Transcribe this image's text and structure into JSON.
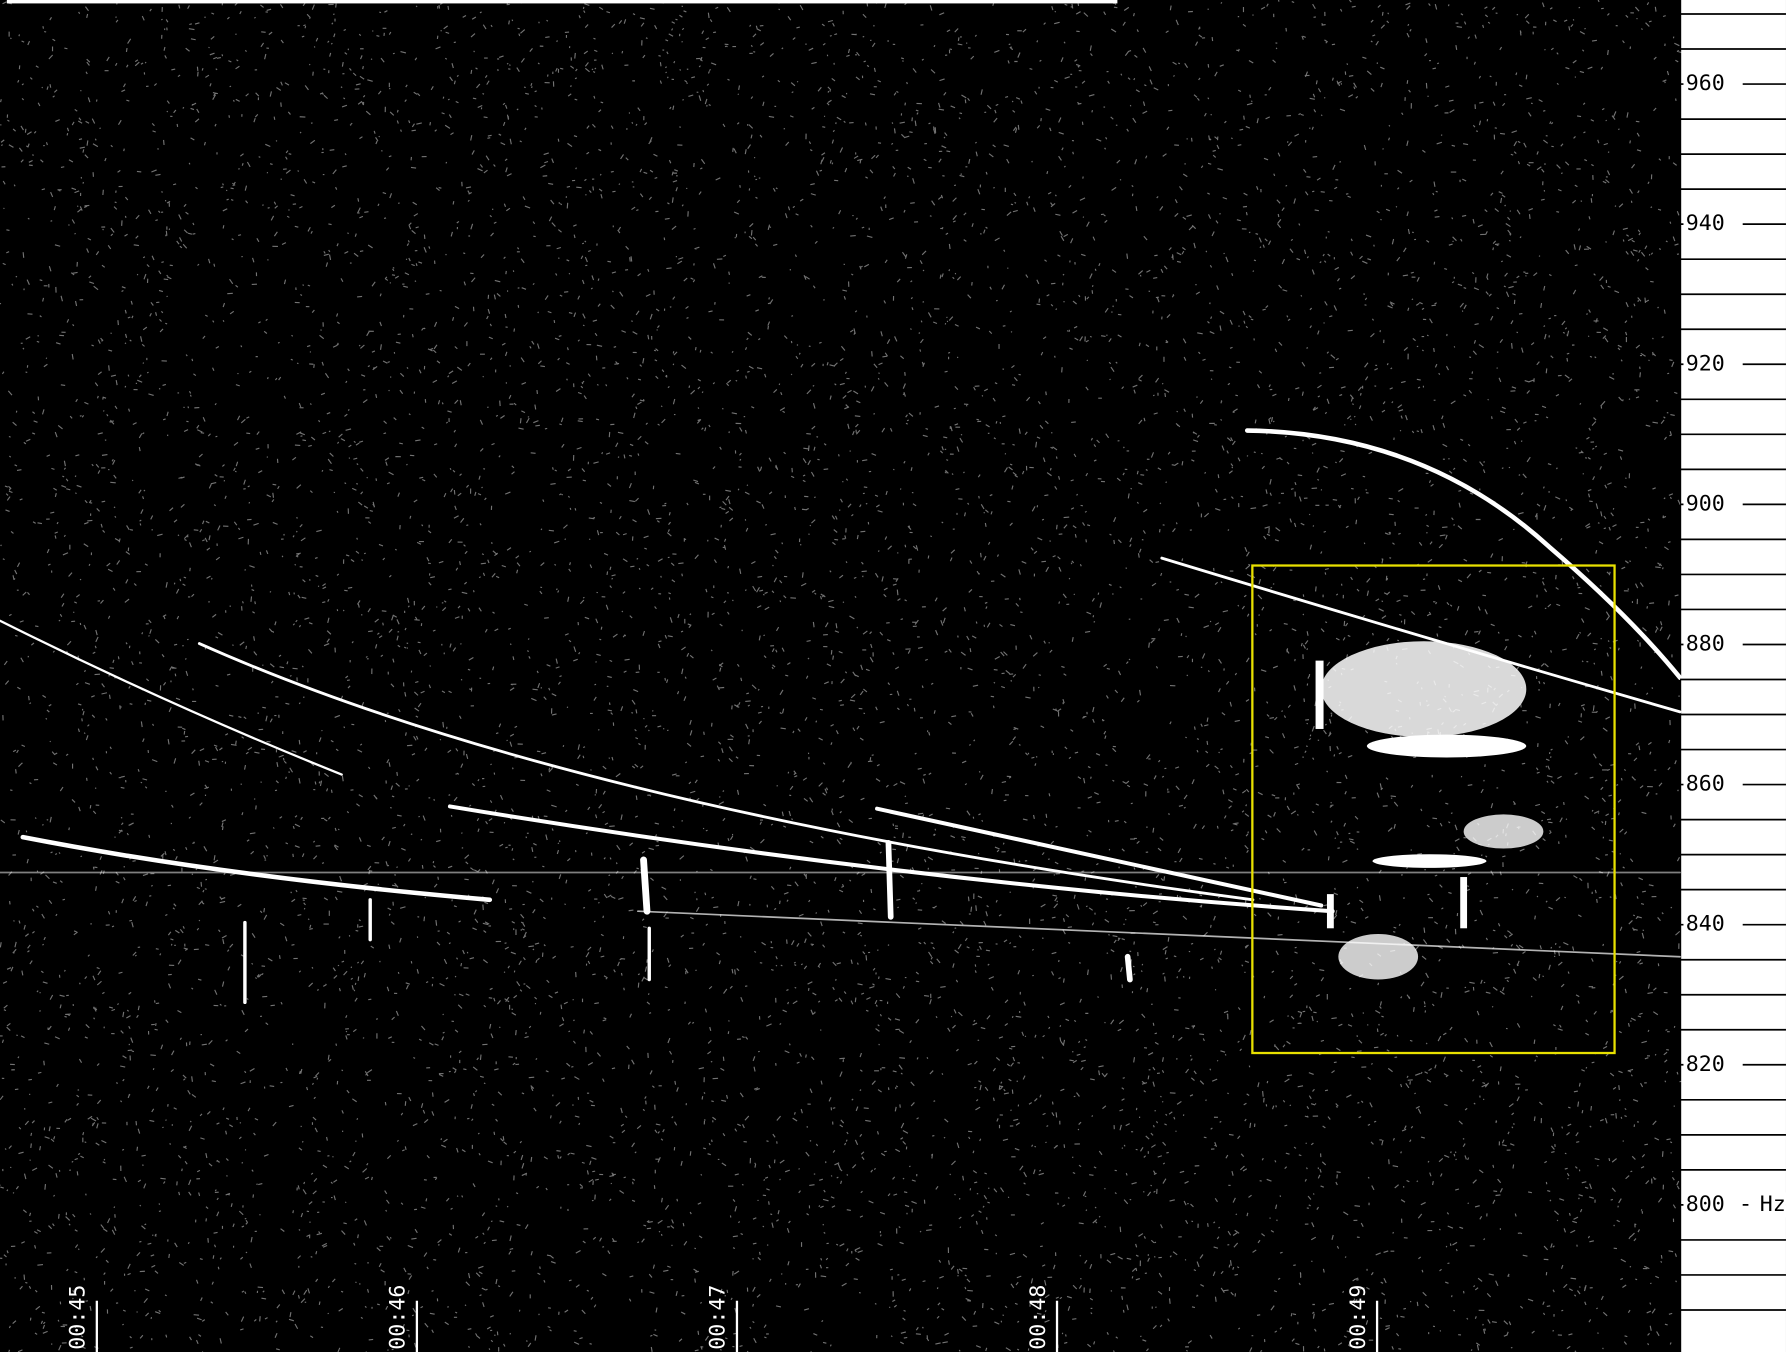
{
  "chart_data": {
    "type": "spectrogram",
    "ylim": [
      779,
      972
    ],
    "yticks": [
      800,
      820,
      840,
      860,
      880,
      900,
      920,
      940,
      960
    ],
    "minor_yticks": [
      785,
      790,
      795,
      805,
      810,
      815,
      825,
      830,
      835,
      845,
      850,
      855,
      865,
      870,
      875,
      885,
      890,
      895,
      905,
      910,
      915,
      925,
      930,
      935,
      945,
      950,
      955,
      965,
      970
    ],
    "y_unit": "Hz",
    "x_labels": [
      "00:45",
      "00:46",
      "00:47",
      "00:48",
      "00:49"
    ]
  }
}
